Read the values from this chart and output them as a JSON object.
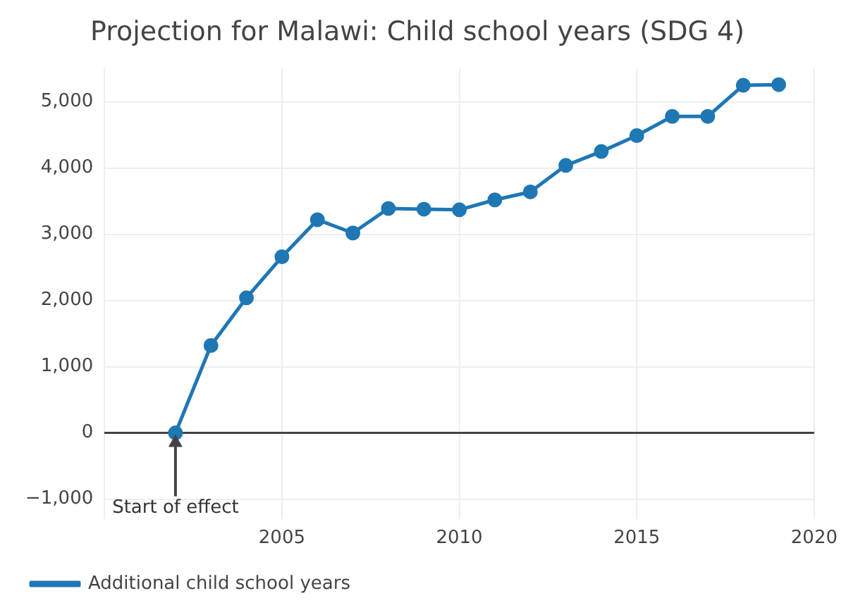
{
  "chart_data": {
    "type": "line",
    "title": "Projection for Malawi: Child school years (SDG 4)",
    "x": [
      2002,
      2003,
      2004,
      2005,
      2006,
      2007,
      2008,
      2009,
      2010,
      2011,
      2012,
      2013,
      2014,
      2015,
      2016,
      2017,
      2018,
      2019
    ],
    "series": [
      {
        "name": "Additional child school years",
        "color": "#1f77b4",
        "values": [
          0,
          1320,
          2040,
          2660,
          3220,
          3020,
          3390,
          3380,
          3370,
          3520,
          3640,
          4040,
          4250,
          4490,
          4780,
          4780,
          5250,
          5260
        ]
      }
    ],
    "xlim": [
      2000,
      2020
    ],
    "xticks": [
      {
        "value": 2000,
        "label": null
      },
      2005,
      2010,
      2015,
      2020
    ],
    "ylim": [
      -1300,
      5500
    ],
    "yticks": [
      {
        "value": -1000,
        "label": "−1,000"
      },
      0,
      {
        "value": 1000,
        "label": "1,000"
      },
      {
        "value": 2000,
        "label": "2,000"
      },
      {
        "value": 3000,
        "label": "3,000"
      },
      {
        "value": 4000,
        "label": "4,000"
      },
      {
        "value": 5000,
        "label": "5,000"
      }
    ],
    "annotations": [
      {
        "text": "Start of effect",
        "x": 2002,
        "y": 0
      }
    ],
    "grid": true,
    "legend": "bottom left",
    "marker": "circle",
    "line_style": "solid"
  }
}
